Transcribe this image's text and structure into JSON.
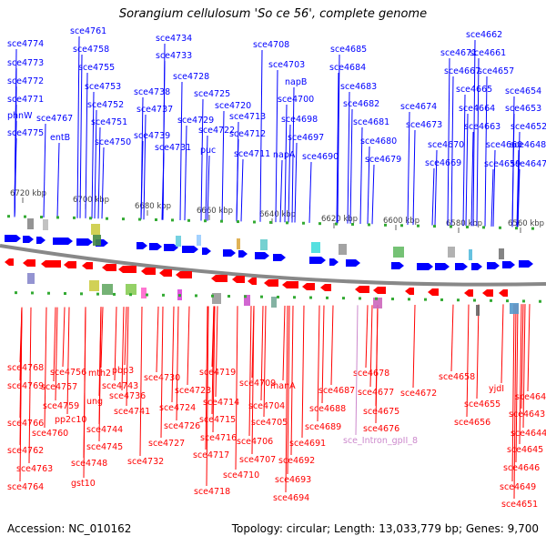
{
  "title": "Sorangium cellulosum 'So ce 56', complete genome",
  "footer": {
    "accession": "Accession: NC_010162",
    "stats": "Topology: circular; Length: 13,033,779 bp; Genes: 9,700"
  },
  "colors": {
    "forward": "#0000ff",
    "reverse": "#ff0000",
    "backbone": "#888888",
    "rna": "#cc88cc",
    "marker": "#33aa33"
  },
  "kbp_ticks": [
    {
      "label": "6720 kbp"
    },
    {
      "label": "6700 kbp"
    },
    {
      "label": "6680 kbp"
    },
    {
      "label": "6660 kbp"
    },
    {
      "label": "6640 kbp"
    },
    {
      "label": "6620 kbp"
    },
    {
      "label": "6600 kbp"
    },
    {
      "label": "6580 kbp"
    },
    {
      "label": "6560 kbp"
    }
  ],
  "forward_genes": [
    "sce4774",
    "sce4773",
    "sce4772",
    "sce4771",
    "phnW",
    "sce4775",
    "sce4767",
    "entB",
    "sce4761",
    "sce4758",
    "sce4755",
    "sce4753",
    "sce4752",
    "sce4751",
    "sce4750",
    "sce4734",
    "sce4733",
    "sce4728",
    "sce4738",
    "sce4737",
    "sce4725",
    "sce4739",
    "sce4729",
    "sce4720",
    "sce4722",
    "sce4731",
    "puc",
    "sce4713",
    "sce4712",
    "sce4711",
    "sce4708",
    "sce4703",
    "napB",
    "sce4700",
    "sce4698",
    "sce4697",
    "napA",
    "sce4690",
    "sce4685",
    "sce4684",
    "sce4683",
    "sce4682",
    "sce4681",
    "sce4680",
    "sce4679",
    "sce4674",
    "sce4673",
    "sce4671",
    "sce4670",
    "sce4669",
    "sce4667",
    "sce4665",
    "sce4664",
    "sce4663",
    "sce4662",
    "sce4661",
    "sce4660",
    "sce4659",
    "sce4657",
    "sce4654",
    "sce4653",
    "sce4652",
    "sce4648",
    "sce4647"
  ],
  "reverse_genes": [
    "sce4768",
    "sce4769",
    "sce4766",
    "sce4762",
    "sce4763",
    "sce4764",
    "sce4756",
    "sce4757",
    "sce4759",
    "pp2c10",
    "sce4760",
    "mth2",
    "ung",
    "sce4744",
    "sce4745",
    "sce4748",
    "gst10",
    "pbp3",
    "sce4743",
    "sce4741",
    "sce4736",
    "sce4732",
    "sce4730",
    "sce4723",
    "sce4724",
    "sce4726",
    "sce4727",
    "sce4719",
    "sce4714",
    "sce4715",
    "sce4716",
    "sce4717",
    "sce4718",
    "sce4709",
    "sce4704",
    "sce4705",
    "sce4706",
    "sce4707",
    "sce4710",
    "manA",
    "sce4687",
    "sce4688",
    "sce4689",
    "sce4691",
    "sce4692",
    "sce4693",
    "sce4694",
    "sce4678",
    "sce4677",
    "sce4675",
    "sce4676",
    "sce4672",
    "sce_Intron_gpII_8",
    "sce4658",
    "sce4655",
    "sce4656",
    "yjdI",
    "sce4642",
    "sce4643",
    "sce4644",
    "sce4645",
    "sce4646",
    "sce4649",
    "sce4651"
  ]
}
